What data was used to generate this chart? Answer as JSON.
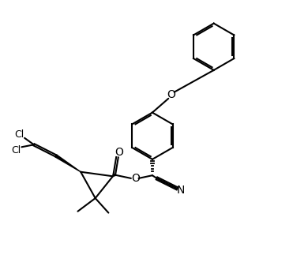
{
  "bg_color": "#ffffff",
  "line_color": "#000000",
  "line_width": 1.5,
  "font_size": 9,
  "figsize": [
    3.71,
    3.37
  ],
  "dpi": 100,
  "xlim": [
    0,
    10
  ],
  "ylim": [
    0,
    9.1
  ]
}
